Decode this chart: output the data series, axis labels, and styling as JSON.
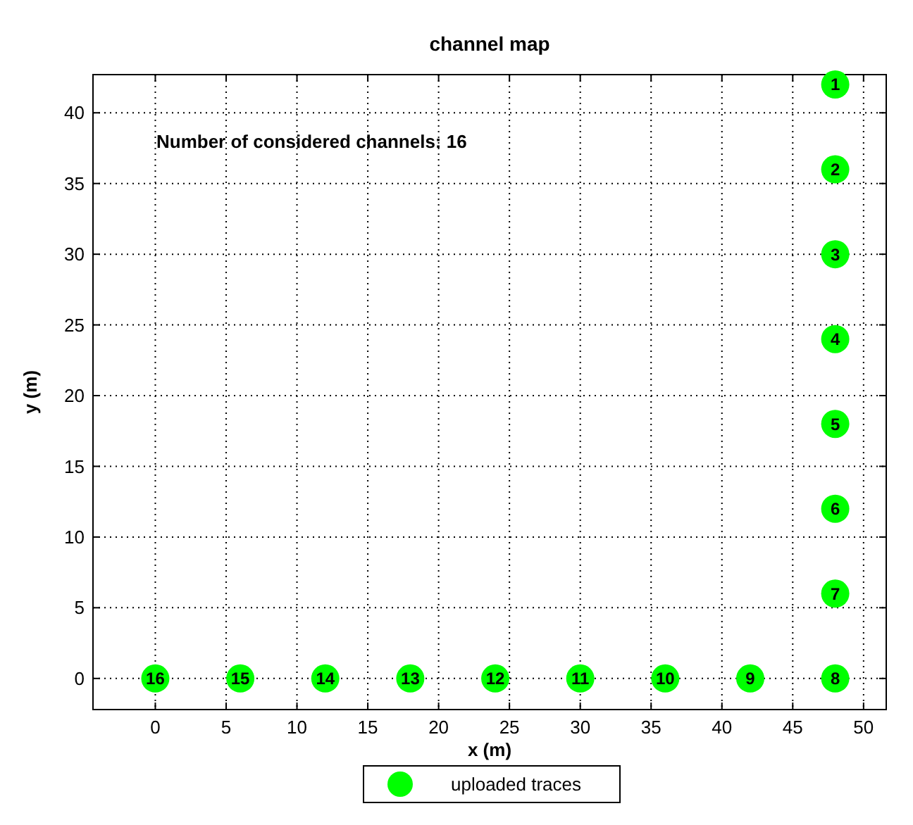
{
  "chart_data": {
    "type": "scatter",
    "title": "channel map",
    "xlabel": "x (m)",
    "ylabel": "y (m)",
    "x": [
      48,
      48,
      48,
      48,
      48,
      48,
      48,
      48,
      42,
      36,
      30,
      24,
      18,
      12,
      6,
      0
    ],
    "series": [
      {
        "name": "uploaded traces",
        "color": "#00ff00",
        "values": [
          42,
          36,
          30,
          24,
          18,
          12,
          6,
          0,
          0,
          0,
          0,
          0,
          0,
          0,
          0,
          0
        ]
      }
    ],
    "xlim": [
      -4.4,
      51.6
    ],
    "ylim": [
      -2.2,
      42.7
    ],
    "xticks": [
      0,
      5,
      10,
      15,
      20,
      25,
      30,
      35,
      40,
      45,
      50
    ],
    "yticks": [
      0,
      5,
      10,
      15,
      20,
      25,
      30,
      35,
      40
    ],
    "annotations": [
      "Number of considered channels: 16",
      {
        "text": "1",
        "x": 48,
        "y": 42
      },
      {
        "text": "2",
        "x": 48,
        "y": 36
      },
      {
        "text": "3",
        "x": 48,
        "y": 30
      },
      {
        "text": "4",
        "x": 48,
        "y": 24
      },
      {
        "text": "5",
        "x": 48,
        "y": 18
      },
      {
        "text": "6",
        "x": 48,
        "y": 12
      },
      {
        "text": "7",
        "x": 48,
        "y": 6
      },
      {
        "text": "8",
        "x": 48,
        "y": 0
      },
      {
        "text": "9",
        "x": 42,
        "y": 0
      },
      {
        "text": "10",
        "x": 36,
        "y": 0
      },
      {
        "text": "11",
        "x": 30,
        "y": 0
      },
      {
        "text": "12",
        "x": 24,
        "y": 0
      },
      {
        "text": "13",
        "x": 18,
        "y": 0
      },
      {
        "text": "14",
        "x": 12,
        "y": 0
      },
      {
        "text": "15",
        "x": 6,
        "y": 0
      },
      {
        "text": "16",
        "x": 0,
        "y": 0
      }
    ],
    "grid": true,
    "legend": "bottom",
    "marker": "circle"
  }
}
